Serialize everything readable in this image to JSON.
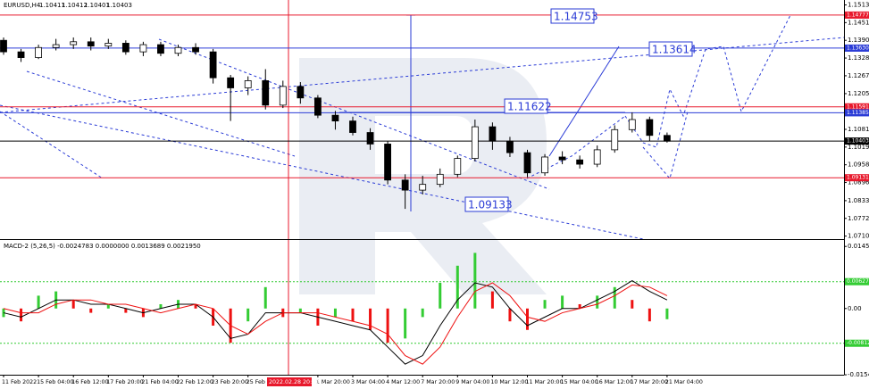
{
  "chart_data": [
    {
      "type": "candlestick",
      "title": "EURUSD,H4",
      "last_ohlc": [
        1.10411,
        1.10412,
        1.10401,
        1.10403
      ],
      "categories": [
        "11 Feb 2022",
        null,
        "15 Feb 04:00",
        null,
        "16 Feb 12:00",
        null,
        "17 Feb 20:00",
        null,
        "21 Feb 04:00",
        null,
        "22 Feb 12:00",
        null,
        "23 Feb 20:00",
        null,
        "25 Feb 04:00",
        null,
        null,
        null,
        "1 Mar 20:00",
        null,
        "3 Mar 04:00",
        null,
        "4 Mar 12:00",
        null,
        "7 Mar 20:00",
        null,
        "9 Mar 04:00",
        null,
        "10 Mar 12:00",
        null,
        "11 Mar 20:00",
        null,
        "15 Mar 04:00",
        null,
        "16 Mar 12:00",
        null,
        "17 Mar 20:00",
        null,
        "21 Mar 04:00"
      ],
      "ohlc": [
        [
          1.139,
          1.14,
          1.134,
          1.135
        ],
        [
          1.135,
          1.136,
          1.1315,
          1.133
        ],
        [
          1.133,
          1.1375,
          1.1325,
          1.1365
        ],
        [
          1.1365,
          1.1395,
          1.1355,
          1.1375
        ],
        [
          1.1375,
          1.14,
          1.136,
          1.1385
        ],
        [
          1.1385,
          1.14,
          1.1355,
          1.137
        ],
        [
          1.137,
          1.1395,
          1.136,
          1.138
        ],
        [
          1.138,
          1.139,
          1.134,
          1.135
        ],
        [
          1.135,
          1.1385,
          1.1335,
          1.1375
        ],
        [
          1.1375,
          1.1385,
          1.1335,
          1.1345
        ],
        [
          1.1345,
          1.1375,
          1.1335,
          1.1365
        ],
        [
          1.1365,
          1.138,
          1.134,
          1.135
        ],
        [
          1.135,
          1.136,
          1.124,
          1.126
        ],
        [
          1.126,
          1.127,
          1.111,
          1.1225
        ],
        [
          1.1225,
          1.1265,
          1.12,
          1.125
        ],
        [
          1.125,
          1.129,
          1.115,
          1.1165
        ],
        [
          1.1165,
          1.125,
          1.1155,
          1.123
        ],
        [
          1.123,
          1.1245,
          1.117,
          1.119
        ],
        [
          1.119,
          1.12,
          1.112,
          1.113
        ],
        [
          1.113,
          1.1145,
          1.108,
          1.111
        ],
        [
          1.111,
          1.1125,
          1.106,
          1.107
        ],
        [
          1.107,
          1.1085,
          1.101,
          1.103
        ],
        [
          1.103,
          1.104,
          1.089,
          1.0905
        ],
        [
          1.0905,
          1.0925,
          1.0805,
          1.087
        ],
        [
          1.087,
          1.092,
          1.0855,
          1.089
        ],
        [
          1.089,
          1.0945,
          1.088,
          1.0925
        ],
        [
          1.0925,
          1.099,
          1.0915,
          1.098
        ],
        [
          1.098,
          1.1115,
          1.097,
          1.109
        ],
        [
          1.109,
          1.1105,
          1.101,
          1.104
        ],
        [
          1.104,
          1.1055,
          1.0985,
          1.1
        ],
        [
          1.1,
          1.101,
          1.0915,
          1.093
        ],
        [
          1.093,
          1.0995,
          1.092,
          1.0985
        ],
        [
          1.0985,
          1.1005,
          1.096,
          1.0975
        ],
        [
          1.0975,
          1.099,
          1.0945,
          1.096
        ],
        [
          1.096,
          1.1025,
          1.095,
          1.101
        ],
        [
          1.101,
          1.1095,
          1.1,
          1.108
        ],
        [
          1.108,
          1.114,
          1.107,
          1.1115
        ],
        [
          1.1115,
          1.1125,
          1.104,
          1.106
        ],
        [
          1.106,
          1.107,
          1.1035,
          1.104
        ]
      ],
      "up_color": "#ffffff",
      "down_color": "#000000",
      "ylim": [
        1.07,
        1.153
      ],
      "yticks": [
        {
          "value": 1.1513,
          "label": "1.15130"
        },
        1.14515,
        {
          "value": 1.139,
          "label": "1.13900"
        },
        1.13285,
        {
          "value": 1.1267,
          "label": "1.12670"
        },
        {
          "value": 1.1205,
          "label": "1.12050"
        },
        {
          "value": 1.1081,
          "label": "1.10810"
        },
        1.10195,
        {
          "value": 1.0958,
          "label": "1.09580"
        },
        1.08965,
        1.08335,
        {
          "value": 1.0772,
          "label": "1.07720"
        },
        1.07105
      ],
      "levels": [
        {
          "value": 1.14777,
          "label": "1.14777",
          "color": "#e8192c"
        },
        {
          "value": 1.1363,
          "label": "1.13630",
          "color": "#2a3bd6"
        },
        {
          "value": 1.11591,
          "label": "1.11591",
          "color": "#e8192c"
        },
        {
          "value": 1.11385,
          "label": "1.11385",
          "color": "#2a3bd6"
        },
        {
          "value": 1.10403,
          "label": "1.10403",
          "color": "#000000"
        },
        {
          "value": 1.09131,
          "label": "1.09131",
          "color": "#e8192c"
        }
      ],
      "annotations": [
        "1.14753",
        "1.13614",
        "1.11622",
        "1.09133"
      ],
      "crosshair_label": "2022.02.28 20:00"
    },
    {
      "type": "macd",
      "title": "MACD-2 (5,26,5) -0.0024783 0.0000000 0.0013689 0.0021950",
      "histogram": [
        -0.002,
        -0.003,
        0.003,
        0.004,
        0.002,
        -0.001,
        0.001,
        -0.001,
        -0.002,
        0.001,
        0.002,
        0.001,
        -0.004,
        -0.008,
        -0.003,
        0.005,
        -0.002,
        -0.001,
        -0.004,
        -0.002,
        -0.003,
        -0.005,
        -0.008,
        -0.007,
        -0.002,
        0.006,
        0.01,
        0.013,
        0.004,
        -0.003,
        -0.005,
        0.002,
        0.003,
        0.001,
        0.003,
        0.005,
        0.002,
        -0.003,
        -0.0025
      ],
      "up_color": "#33cc33",
      "down_color": "#ee1111",
      "lines": [
        {
          "color": "#000000",
          "values": [
            -0.001,
            -0.002,
            0.0,
            0.002,
            0.002,
            0.001,
            0.001,
            0.0,
            -0.001,
            0.0,
            0.001,
            0.001,
            -0.002,
            -0.007,
            -0.006,
            -0.001,
            -0.001,
            -0.001,
            -0.002,
            -0.003,
            -0.004,
            -0.005,
            -0.009,
            -0.013,
            -0.011,
            -0.004,
            0.002,
            0.006,
            0.005,
            0.0,
            -0.004,
            -0.002,
            0.0,
            0.0,
            0.002,
            0.004,
            0.0065,
            0.004,
            0.002
          ]
        },
        {
          "color": "#ee1111",
          "values": [
            0.0,
            -0.001,
            -0.001,
            0.001,
            0.002,
            0.002,
            0.001,
            0.001,
            0.0,
            -0.001,
            0.0,
            0.001,
            0.0,
            -0.004,
            -0.006,
            -0.003,
            -0.001,
            -0.001,
            -0.001,
            -0.002,
            -0.003,
            -0.004,
            -0.006,
            -0.011,
            -0.013,
            -0.009,
            -0.002,
            0.004,
            0.006,
            0.003,
            -0.002,
            -0.003,
            -0.001,
            0.0,
            0.001,
            0.003,
            0.0055,
            0.005,
            0.003
          ]
        }
      ],
      "ylim": [
        -0.0161,
        0.0158
      ],
      "yticks": [
        0.0145082,
        {
          "value": 0,
          "label": "0.00"
        },
        -0.015492
      ],
      "levels": [
        {
          "value": 0.00627,
          "label": "0.00627",
          "color": "#33cc33"
        },
        {
          "value": -0.00812,
          "label": "-0.00812",
          "color": "#33cc33"
        }
      ]
    }
  ]
}
